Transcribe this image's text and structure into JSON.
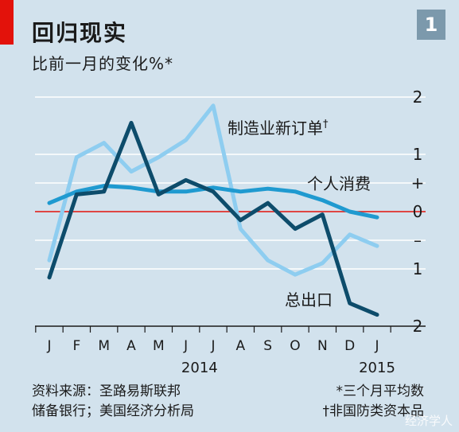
{
  "header": {
    "title": "回归现实",
    "subtitle": "比前一月的变化%*",
    "badge": "1"
  },
  "footer": {
    "source_line1": "资料来源：圣路易斯联邦",
    "source_line2": "储备银行；美国经济分析局",
    "note_line1": "*三个月平均数",
    "note_line2": "†非国防类资本品"
  },
  "watermark": "经济学人",
  "colors": {
    "background": "#d2e2ed",
    "brand_red": "#e3120b",
    "exports": "#0d4c6b",
    "personal_consumption": "#1f9ad0",
    "manufacturing_orders": "#8ecdf0",
    "zero_line": "#e3120b"
  },
  "chart_data": {
    "type": "line",
    "categories": [
      "J",
      "F",
      "M",
      "A",
      "M",
      "J",
      "J",
      "A",
      "S",
      "O",
      "N",
      "D",
      "J"
    ],
    "year_labels": [
      {
        "label": "2014",
        "at_index": 5.5
      },
      {
        "label": "2015",
        "at_index": 12
      }
    ],
    "ylim": [
      -2,
      2
    ],
    "y_ticks": [
      {
        "value": 2,
        "label": "2"
      },
      {
        "value": 1,
        "label": "1"
      },
      {
        "value": 0.5,
        "label": "+"
      },
      {
        "value": 0,
        "label": "0"
      },
      {
        "value": -0.5,
        "label": "–"
      },
      {
        "value": -1,
        "label": "1"
      },
      {
        "value": -2,
        "label": "2"
      }
    ],
    "grid": true,
    "series": [
      {
        "name": "制造业新订单†",
        "color": "#8ecdf0",
        "values": [
          -0.85,
          0.95,
          1.2,
          0.7,
          0.95,
          1.25,
          1.85,
          -0.3,
          -0.85,
          -1.1,
          -0.9,
          -0.4,
          -0.6
        ]
      },
      {
        "name": "个人消费",
        "color": "#1f9ad0",
        "values": [
          0.15,
          0.35,
          0.45,
          0.42,
          0.35,
          0.35,
          0.42,
          0.35,
          0.4,
          0.35,
          0.2,
          0.0,
          -0.1
        ]
      },
      {
        "name": "总出口",
        "color": "#0d4c6b",
        "values": [
          -1.15,
          0.3,
          0.35,
          1.55,
          0.3,
          0.55,
          0.35,
          -0.15,
          0.15,
          -0.3,
          -0.05,
          -1.6,
          -1.8
        ]
      }
    ],
    "labels": {
      "manufacturing": "制造业新订单",
      "manufacturing_mark": "†",
      "consumption": "个人消费",
      "exports": "总出口"
    }
  }
}
